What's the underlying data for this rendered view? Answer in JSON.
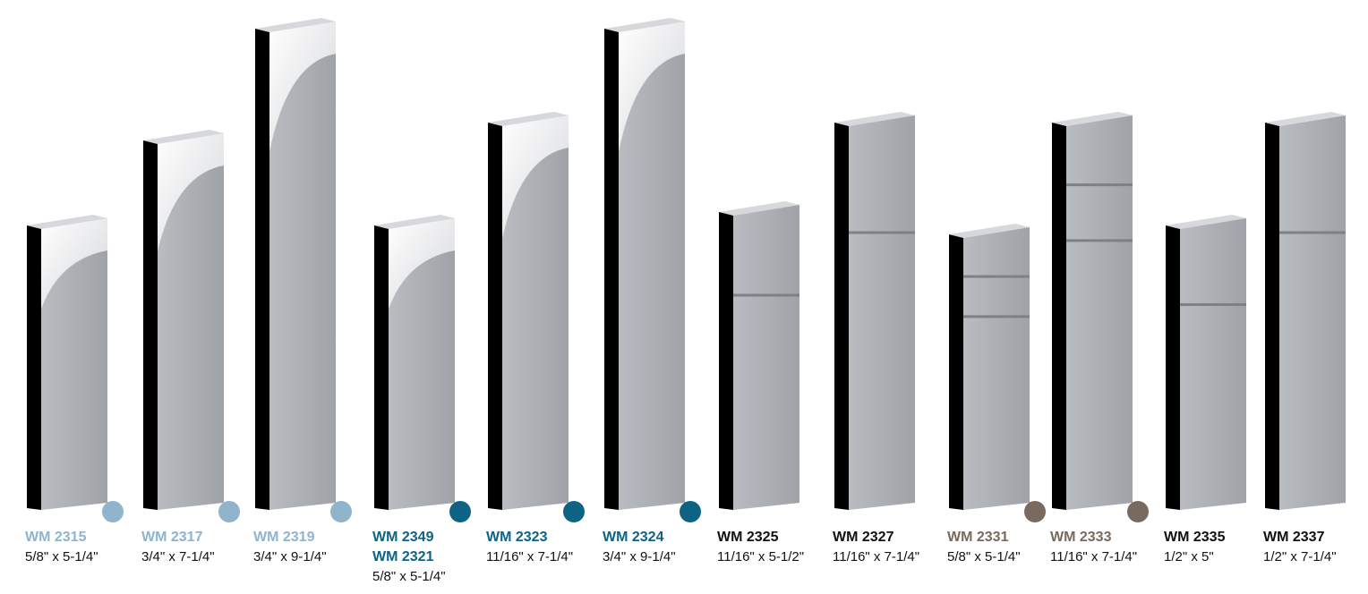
{
  "items": [
    {
      "codes": [
        "WM 2315"
      ],
      "size": "5/8\" x 5-1/4\"",
      "color": "#8fb4cc",
      "dot": true
    },
    {
      "codes": [
        "WM 2317"
      ],
      "size": "3/4\" x 7-1/4\"",
      "color": "#8fb4cc",
      "dot": true
    },
    {
      "codes": [
        "WM 2319"
      ],
      "size": "3/4\" x 9-1/4\"",
      "color": "#8fb4cc",
      "dot": true
    },
    {
      "codes": [
        "WM 2349",
        "WM 2321"
      ],
      "size": "5/8\" x 5-1/4\"",
      "color": "#0e6385",
      "dot": true
    },
    {
      "codes": [
        "WM 2323"
      ],
      "size": "11/16\" x 7-1/4\"",
      "color": "#0e6385",
      "dot": true
    },
    {
      "codes": [
        "WM 2324"
      ],
      "size": "3/4\" x 9-1/4\"",
      "color": "#0e6385",
      "dot": true
    },
    {
      "codes": [
        "WM 2325"
      ],
      "size": "11/16\" x 5-1/2\"",
      "color": "#111111",
      "dot": false
    },
    {
      "codes": [
        "WM 2327"
      ],
      "size": "11/16\" x 7-1/4\"",
      "color": "#111111",
      "dot": false
    },
    {
      "codes": [
        "WM 2331"
      ],
      "size": "5/8\" x 5-1/4\"",
      "color": "#786a5e",
      "dot": true
    },
    {
      "codes": [
        "WM 2333"
      ],
      "size": "11/16\" x 7-1/4\"",
      "color": "#786a5e",
      "dot": true
    },
    {
      "codes": [
        "WM 2335"
      ],
      "size": "1/2\" x 5\"",
      "color": "#111111",
      "dot": false
    },
    {
      "codes": [
        "WM 2337"
      ],
      "size": "1/2\" x 7-1/4\"",
      "color": "#111111",
      "dot": false
    }
  ]
}
